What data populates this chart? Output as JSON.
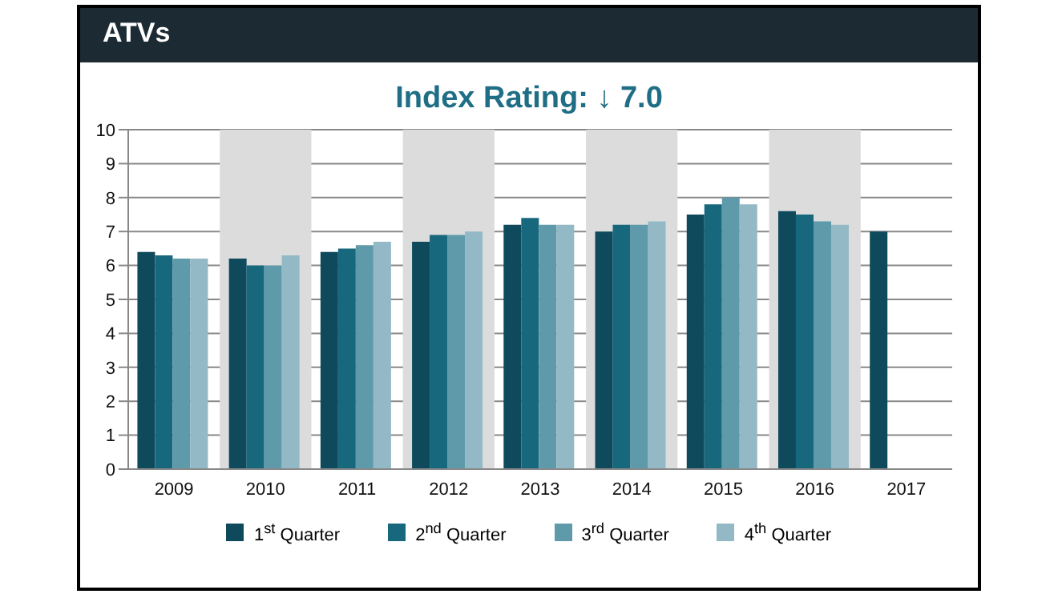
{
  "chart_data": {
    "type": "bar",
    "title": "ATVs",
    "subtitle": "Index Rating: ↓ 7.0",
    "categories": [
      "2009",
      "2010",
      "2011",
      "2012",
      "2013",
      "2014",
      "2015",
      "2016",
      "2017"
    ],
    "series": [
      {
        "name": "1$^{st}$ Quarter",
        "color": "#0f4a5c",
        "values": [
          6.4,
          6.2,
          6.4,
          6.7,
          7.2,
          7.0,
          7.5,
          7.6,
          7.0
        ]
      },
      {
        "name": "2$^{nd}$ Quarter",
        "color": "#17677d",
        "values": [
          6.3,
          6.0,
          6.5,
          6.9,
          7.4,
          7.2,
          7.8,
          7.5,
          null
        ]
      },
      {
        "name": "3$^{rd}$ Quarter",
        "color": "#5e9aaa",
        "values": [
          6.2,
          6.0,
          6.6,
          6.9,
          7.2,
          7.2,
          8.0,
          7.3,
          null
        ]
      },
      {
        "name": "4$^{th}$ Quarter",
        "color": "#93b9c6",
        "values": [
          6.2,
          6.3,
          6.7,
          7.0,
          7.2,
          7.3,
          7.8,
          7.2,
          null
        ]
      }
    ],
    "bands": [
      {
        "axis": "x",
        "from": "2010",
        "to": "2010",
        "color": "#dcdcdc"
      },
      {
        "axis": "x",
        "from": "2012",
        "to": "2012",
        "color": "#dcdcdc"
      },
      {
        "axis": "x",
        "from": "2014",
        "to": "2014",
        "color": "#dcdcdc"
      },
      {
        "axis": "x",
        "from": "2016",
        "to": "2016",
        "color": "#dcdcdc"
      }
    ],
    "ylim": [
      0,
      10
    ],
    "yticks": [
      0,
      1,
      2,
      3,
      4,
      5,
      6,
      7,
      8,
      9,
      10
    ],
    "grid": "y",
    "legend": "bottom"
  }
}
